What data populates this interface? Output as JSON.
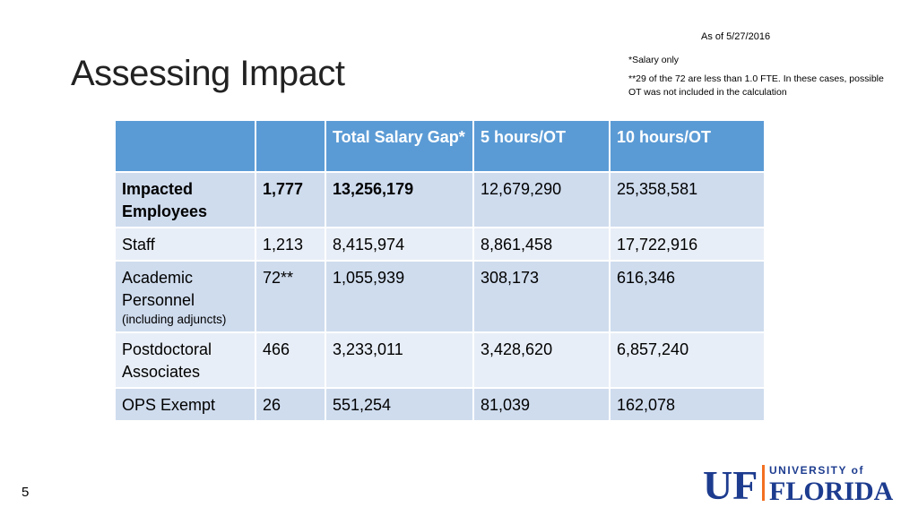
{
  "date": "As of 5/27/2016",
  "title": "Assessing Impact",
  "notes": {
    "salary": "*Salary only",
    "fte": "**29 of the 72 are less than 1.0 FTE.  In these cases, possible OT was not included in the calculation"
  },
  "table": {
    "headers": [
      "",
      "",
      "Total Salary Gap*",
      "5 hours/OT",
      "10 hours/OT"
    ],
    "rows": [
      {
        "label": "Impacted Employees",
        "sublabel": "",
        "count": "1,777",
        "gap": "13,256,179",
        "ot5": "12,679,290",
        "ot10": "25,358,581"
      },
      {
        "label": "Staff",
        "sublabel": "",
        "count": "1,213",
        "gap": "8,415,974",
        "ot5": "8,861,458",
        "ot10": "17,722,916"
      },
      {
        "label": "Academic Personnel",
        "sublabel": "(including adjuncts)",
        "count": "72**",
        "gap": "1,055,939",
        "ot5": "308,173",
        "ot10": "616,346"
      },
      {
        "label": "Postdoctoral Associates",
        "sublabel": "",
        "count": "466",
        "gap": "3,233,011",
        "ot5": "3,428,620",
        "ot10": "6,857,240"
      },
      {
        "label": "OPS Exempt",
        "sublabel": "",
        "count": "26",
        "gap": "551,254",
        "ot5": "81,039",
        "ot10": "162,078"
      }
    ]
  },
  "page_number": "5",
  "logo": {
    "monogram": "UF",
    "line1": "UNIVERSITY of",
    "line2": "FLORIDA",
    "colors": {
      "blue": "#1d3c8f",
      "orange": "#f37021"
    }
  }
}
